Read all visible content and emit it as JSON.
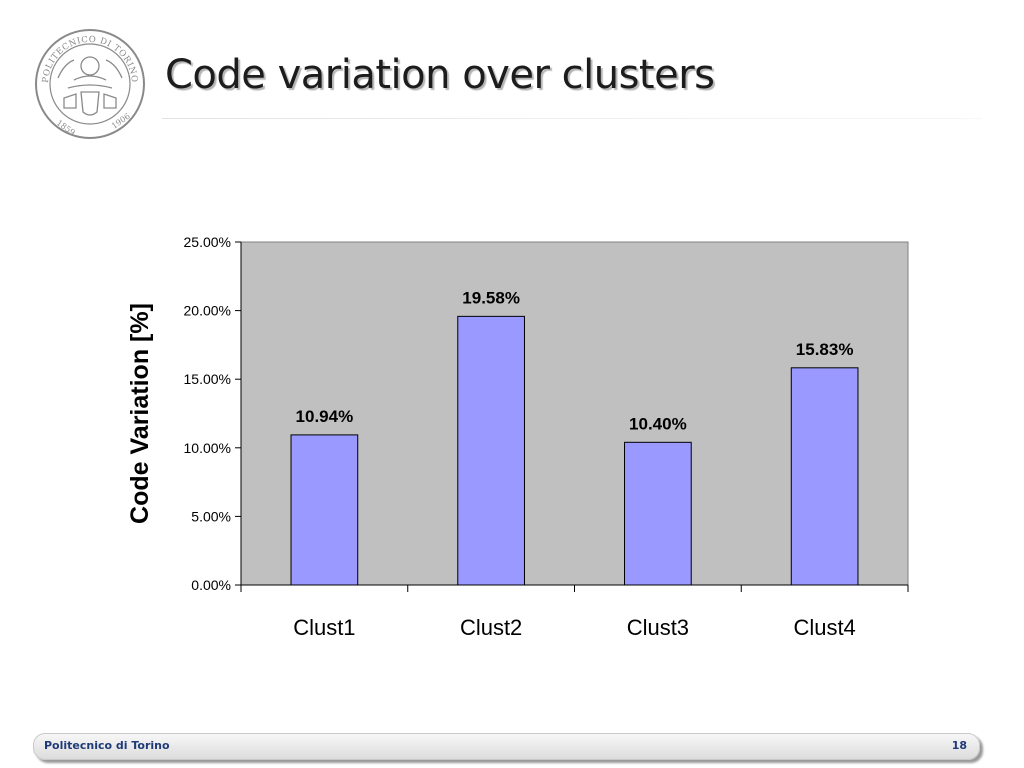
{
  "slide": {
    "title": "Code variation over clusters",
    "logo": {
      "name": "politecnico-di-torino-seal",
      "text_top": "POLITECNICO DI TORINO",
      "year_left": "1859",
      "year_right": "1906",
      "color": "#8a8a8a"
    }
  },
  "footer": {
    "institution": "Politecnico di Torino",
    "page_number": "18"
  },
  "chart_data": {
    "type": "bar",
    "title": "",
    "xlabel": "",
    "ylabel": "Code Variation [%]",
    "categories": [
      "Clust1",
      "Clust2",
      "Clust3",
      "Clust4"
    ],
    "values": [
      10.94,
      19.58,
      10.4,
      15.83
    ],
    "data_labels": [
      "10.94%",
      "19.58%",
      "10.40%",
      "15.83%"
    ],
    "y_ticks": [
      0,
      5,
      10,
      15,
      20,
      25
    ],
    "y_tick_labels": [
      "0.00%",
      "5.00%",
      "10.00%",
      "15.00%",
      "20.00%",
      "25.00%"
    ],
    "ylim": [
      0,
      25
    ],
    "grid": false,
    "legend": "none",
    "colors": {
      "bar_fill": "#9999ff",
      "bar_stroke": "#000000",
      "plot_background": "#c0c0c0",
      "plot_border": "#808080"
    }
  }
}
